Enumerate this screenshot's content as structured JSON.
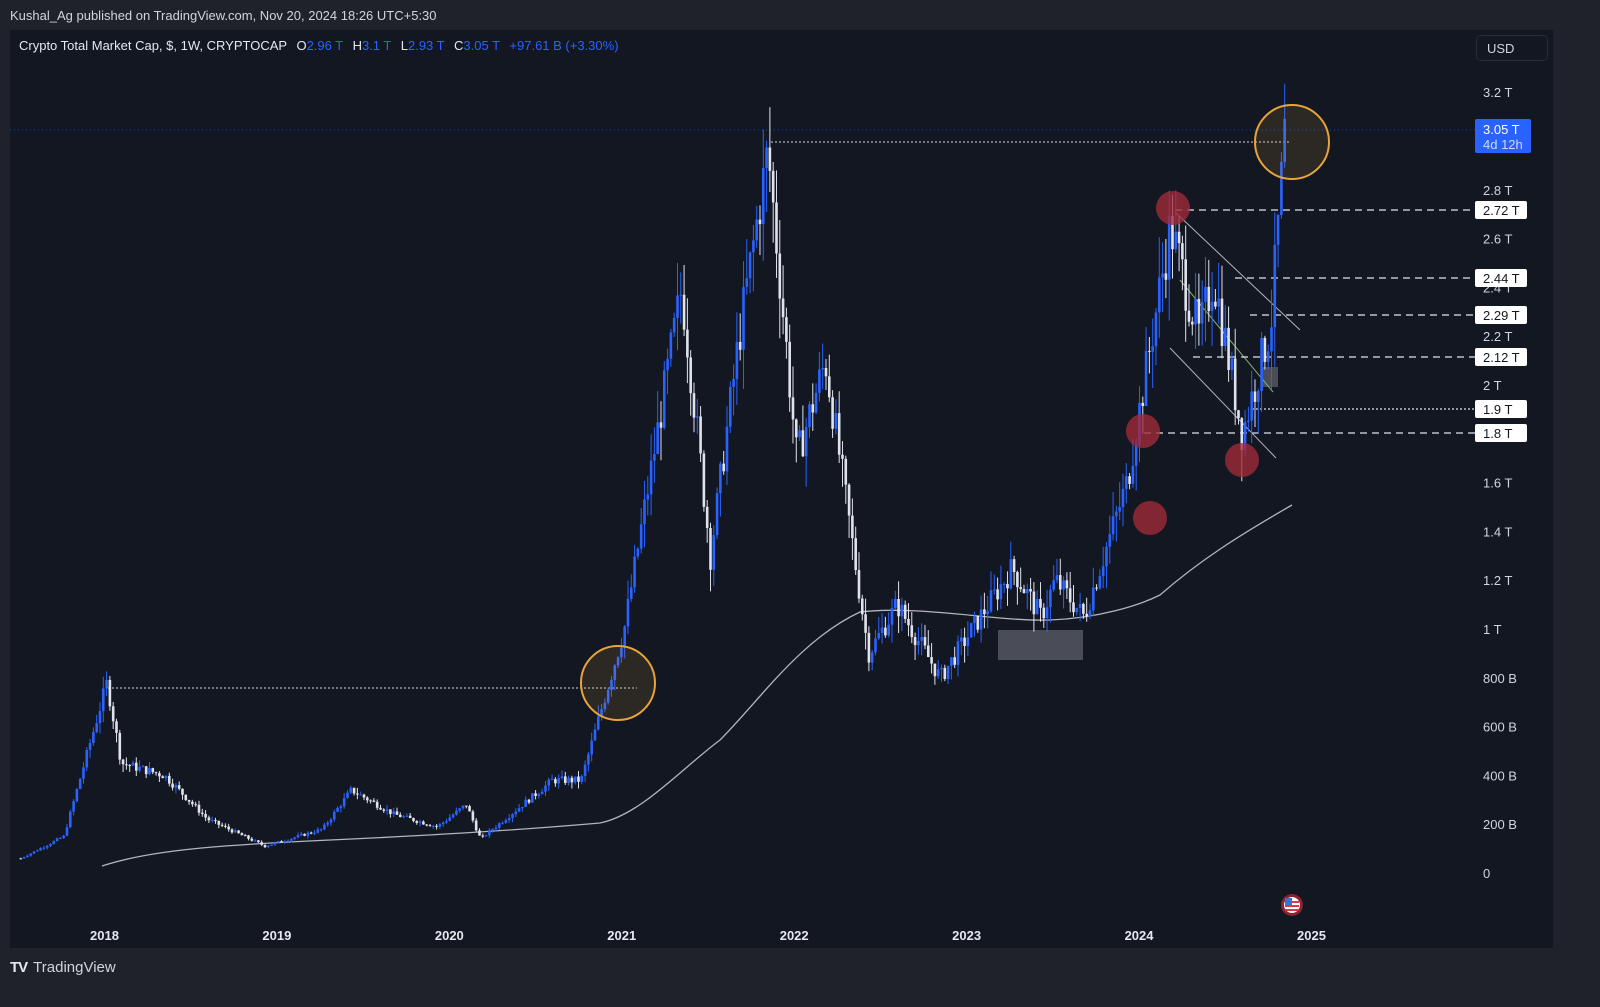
{
  "header": {
    "published_text": "Kushal_Ag published on TradingView.com, Nov 20, 2024 18:26 UTC+5:30"
  },
  "legend": {
    "symbol": "Crypto Total Market Cap, $, 1W, CRYPTOCAP",
    "open_label": "O",
    "open": "2.96 T",
    "high_label": "H",
    "high": "3.1 T",
    "low_label": "L",
    "low": "2.93 T",
    "close_label": "C",
    "close": "3.05 T",
    "change": "+97.61 B (+3.30%)"
  },
  "currency_button": "USD",
  "price_tag": {
    "price": "3.05 T",
    "countdown": "4d 12h",
    "color": "#2962ff"
  },
  "footer": {
    "brand": "TradingView",
    "logo": "TV"
  },
  "colors": {
    "background": "#131722",
    "frame": "#1f222b",
    "up_candle": "#2962ff",
    "down_candle": "#e0e3eb",
    "ma_line": "#b2b5be",
    "orange_circle": "#e8a33a",
    "red_marker": "#8b2332"
  },
  "chart_data": {
    "type": "candlestick",
    "title": "Crypto Total Market Cap, $, 1W, CRYPTOCAP",
    "xlabel": "",
    "ylabel": "USD",
    "x_ticks": [
      "2018",
      "2019",
      "2020",
      "2021",
      "2022",
      "2023",
      "2024",
      "2025"
    ],
    "y_ticks": [
      "3.2 T",
      "2.8 T",
      "2.6 T",
      "2.4 T",
      "2.2 T",
      "2 T",
      "1.6 T",
      "1.4 T",
      "1.2 T",
      "1 T",
      "800 B",
      "600 B",
      "400 B",
      "200 B",
      "0"
    ],
    "y_tick_values_T": [
      3.2,
      2.8,
      2.6,
      2.4,
      2.2,
      2.0,
      1.6,
      1.4,
      1.2,
      1.0,
      0.8,
      0.6,
      0.4,
      0.2,
      0
    ],
    "ylim_T": [
      -0.05,
      3.35
    ],
    "x_range": [
      "2017-07",
      "2025-03"
    ],
    "approx_close_path_T": [
      {
        "date": "2017-07",
        "value": 0.06
      },
      {
        "date": "2017-10",
        "value": 0.15
      },
      {
        "date": "2018-01",
        "value": 0.78
      },
      {
        "date": "2018-02",
        "value": 0.45
      },
      {
        "date": "2018-05",
        "value": 0.4
      },
      {
        "date": "2018-08",
        "value": 0.22
      },
      {
        "date": "2018-12",
        "value": 0.11
      },
      {
        "date": "2019-04",
        "value": 0.18
      },
      {
        "date": "2019-06",
        "value": 0.34
      },
      {
        "date": "2019-09",
        "value": 0.24
      },
      {
        "date": "2019-12",
        "value": 0.19
      },
      {
        "date": "2020-02",
        "value": 0.28
      },
      {
        "date": "2020-03",
        "value": 0.14
      },
      {
        "date": "2020-08",
        "value": 0.38
      },
      {
        "date": "2020-10",
        "value": 0.38
      },
      {
        "date": "2021-01",
        "value": 1.0
      },
      {
        "date": "2021-05",
        "value": 2.4
      },
      {
        "date": "2021-07",
        "value": 1.3
      },
      {
        "date": "2021-09",
        "value": 2.2
      },
      {
        "date": "2021-11",
        "value": 2.96
      },
      {
        "date": "2022-01",
        "value": 1.7
      },
      {
        "date": "2022-03",
        "value": 2.1
      },
      {
        "date": "2022-06",
        "value": 0.9
      },
      {
        "date": "2022-08",
        "value": 1.1
      },
      {
        "date": "2022-11",
        "value": 0.8
      },
      {
        "date": "2023-04",
        "value": 1.25
      },
      {
        "date": "2023-06",
        "value": 1.05
      },
      {
        "date": "2023-07",
        "value": 1.2
      },
      {
        "date": "2023-09",
        "value": 1.05
      },
      {
        "date": "2023-12",
        "value": 1.6
      },
      {
        "date": "2024-03",
        "value": 2.65
      },
      {
        "date": "2024-05",
        "value": 2.2
      },
      {
        "date": "2024-06",
        "value": 2.45
      },
      {
        "date": "2024-08",
        "value": 1.8
      },
      {
        "date": "2024-10",
        "value": 2.25
      },
      {
        "date": "2024-11",
        "value": 3.05
      }
    ],
    "moving_average_approx_T": [
      {
        "date": "2017-12",
        "value": 0.05
      },
      {
        "date": "2019-06",
        "value": 0.13
      },
      {
        "date": "2020-09",
        "value": 0.22
      },
      {
        "date": "2021-06",
        "value": 0.7
      },
      {
        "date": "2022-06",
        "value": 1.08
      },
      {
        "date": "2023-06",
        "value": 1.04
      },
      {
        "date": "2024-03",
        "value": 1.2
      },
      {
        "date": "2024-11",
        "value": 1.52
      }
    ],
    "horizontal_levels": [
      {
        "value": "2.72 T",
        "style": "dashed"
      },
      {
        "value": "2.44 T",
        "style": "dashed"
      },
      {
        "value": "2.29 T",
        "style": "dashed"
      },
      {
        "value": "2.12 T",
        "style": "dashed"
      },
      {
        "value": "1.9 T",
        "style": "dotted"
      },
      {
        "value": "1.8 T",
        "style": "dashed"
      }
    ],
    "annotations": [
      "Dotted line at 2018 ATH (~0.76 T) extended to early 2021",
      "Orange circle at 2021 breakout of 2018 ATH",
      "Dotted line at 2021 ATH (~2.97 T) extended to Nov 2024",
      "Orange circle at Nov 2024 breakout of 2021 ATH",
      "Red circles at swing points 2024 (2.72 T high, 1.8 T, ~1.47 T, ~1.7 T)",
      "Descending channel Mar–Oct 2024",
      "Grey box consolidation zone 2023",
      "US flag economic event marker near Nov 2024"
    ],
    "last_price": "3.05 T"
  }
}
